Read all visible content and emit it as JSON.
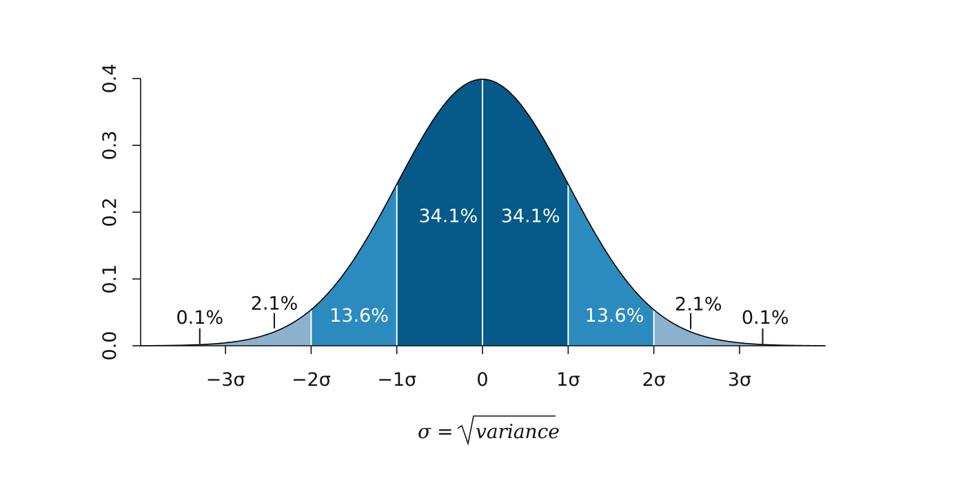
{
  "chart_data": {
    "type": "area",
    "title": "",
    "xlabel": "",
    "ylabel": "",
    "xlim": [
      -4,
      4
    ],
    "ylim": [
      0,
      0.4
    ],
    "grid": false,
    "curve": "standard normal density",
    "x_ticks": [
      {
        "value": -3,
        "label": "−3σ"
      },
      {
        "value": -2,
        "label": "−2σ"
      },
      {
        "value": -1,
        "label": "−1σ"
      },
      {
        "value": 0,
        "label": "0"
      },
      {
        "value": 1,
        "label": "1σ"
      },
      {
        "value": 2,
        "label": "2σ"
      },
      {
        "value": 3,
        "label": "3σ"
      }
    ],
    "y_ticks": [
      {
        "value": 0.0,
        "label": "0.0"
      },
      {
        "value": 0.1,
        "label": "0.1"
      },
      {
        "value": 0.2,
        "label": "0.2"
      },
      {
        "value": 0.3,
        "label": "0.3"
      },
      {
        "value": 0.4,
        "label": "0.4"
      }
    ],
    "bands": [
      {
        "from": -4,
        "to": -2,
        "fill": "#8cb1cf"
      },
      {
        "from": -2,
        "to": -1,
        "fill": "#2b8bbf"
      },
      {
        "from": -1,
        "to": 1,
        "fill": "#065a89"
      },
      {
        "from": 1,
        "to": 2,
        "fill": "#2b8bbf"
      },
      {
        "from": 2,
        "to": 4,
        "fill": "#8cb1cf"
      }
    ],
    "dividers": [
      -2,
      -1,
      0,
      1,
      2
    ],
    "region_labels": [
      {
        "text": "34.1%",
        "x": -0.4,
        "y": 0.185,
        "color": "#ffffff"
      },
      {
        "text": "34.1%",
        "x": 0.56,
        "y": 0.185,
        "color": "#ffffff"
      },
      {
        "text": "13.6%",
        "x": -1.44,
        "y": 0.036,
        "color": "#ffffff"
      },
      {
        "text": "13.6%",
        "x": 1.54,
        "y": 0.036,
        "color": "#ffffff"
      }
    ],
    "tail_labels": [
      {
        "text": "0.1%",
        "x": -3.3,
        "y": 0.033,
        "pointer_x": -3.3,
        "pointer_from": 0.003,
        "pointer_to": 0.026
      },
      {
        "text": "2.1%",
        "x": -2.43,
        "y": 0.054,
        "pointer_x": -2.43,
        "pointer_from": 0.026,
        "pointer_to": 0.049
      },
      {
        "text": "2.1%",
        "x": 2.52,
        "y": 0.053,
        "pointer_x": 2.43,
        "pointer_from": 0.025,
        "pointer_to": 0.049
      },
      {
        "text": "0.1%",
        "x": 3.3,
        "y": 0.033,
        "pointer_x": 3.27,
        "pointer_from": 0.003,
        "pointer_to": 0.026
      }
    ],
    "formula": {
      "lhs": "σ =",
      "radicand": "variance"
    },
    "colors": {
      "curve": "#000000",
      "divider": "#ffffff",
      "text": "#111111"
    }
  }
}
